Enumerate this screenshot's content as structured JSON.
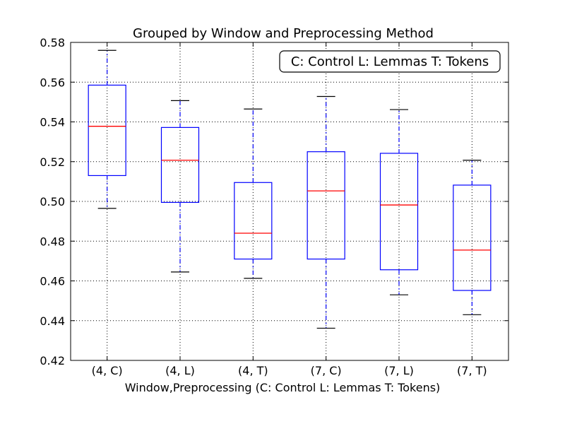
{
  "chart_data": {
    "type": "box",
    "title": "Grouped by Window and Preprocessing Method",
    "xlabel": "Window,Preprocessing (C: Control L: Lemmas T: Tokens)",
    "ylabel": "",
    "ylim": [
      0.42,
      0.58
    ],
    "yticks": [
      "0.42",
      "0.44",
      "0.46",
      "0.48",
      "0.50",
      "0.52",
      "0.54",
      "0.56",
      "0.58"
    ],
    "grid": true,
    "legend_placement": "top-right",
    "legend_text": "C: Control L: Lemmas T: Tokens",
    "categories": [
      "(4, C)",
      "(4, L)",
      "(4, T)",
      "(7, C)",
      "(7, L)",
      "(7, T)"
    ],
    "boxes": [
      {
        "whisker_low": 0.4965,
        "q1": 0.513,
        "median": 0.5378,
        "q3": 0.5585,
        "whisker_high": 0.576
      },
      {
        "whisker_low": 0.4645,
        "q1": 0.4995,
        "median": 0.5207,
        "q3": 0.5372,
        "whisker_high": 0.5507
      },
      {
        "whisker_low": 0.4613,
        "q1": 0.471,
        "median": 0.484,
        "q3": 0.5095,
        "whisker_high": 0.5465
      },
      {
        "whisker_low": 0.4362,
        "q1": 0.471,
        "median": 0.5053,
        "q3": 0.525,
        "whisker_high": 0.5528
      },
      {
        "whisker_low": 0.453,
        "q1": 0.4656,
        "median": 0.4982,
        "q3": 0.5242,
        "whisker_high": 0.5462
      },
      {
        "whisker_low": 0.443,
        "q1": 0.4552,
        "median": 0.4755,
        "q3": 0.5082,
        "whisker_high": 0.5207
      }
    ],
    "colors": {
      "box": "#0000ff",
      "median": "#ff0000",
      "whisker_cap": "#000000",
      "grid": "#000000"
    }
  }
}
